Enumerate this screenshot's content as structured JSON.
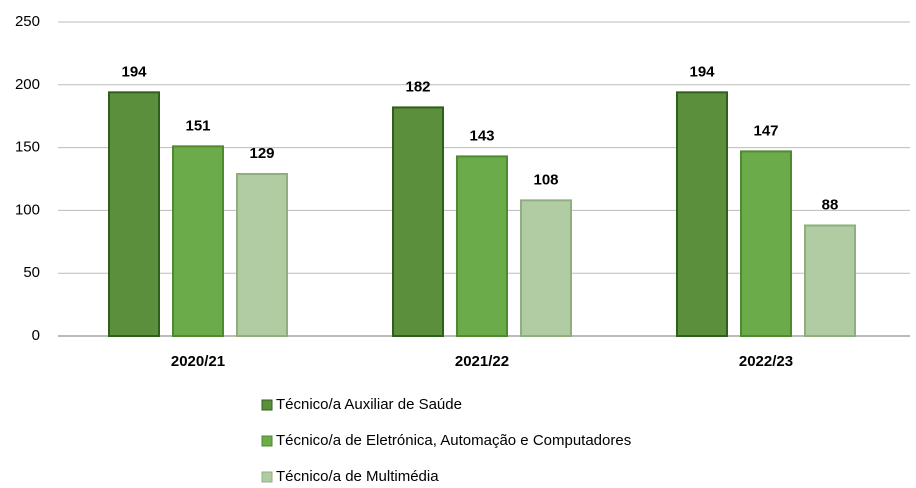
{
  "chart_data": {
    "type": "bar",
    "categories": [
      "2020/21",
      "2021/22",
      "2022/23"
    ],
    "series": [
      {
        "name": "Técnico/a Auxiliar de Saúde",
        "color": "#5b8f3b",
        "values": [
          194,
          182,
          194
        ]
      },
      {
        "name": "Técnico/a de Eletrónica, Automação e Computadores",
        "color": "#6cab4a",
        "values": [
          151,
          143,
          147
        ]
      },
      {
        "name": "Técnico/a de Multimédia",
        "color": "#b1cca2",
        "values": [
          129,
          108,
          88
        ]
      }
    ],
    "ylim": [
      0,
      250
    ],
    "yticks": [
      0,
      50,
      100,
      150,
      200,
      250
    ],
    "grid": true,
    "legend": "bottom"
  }
}
